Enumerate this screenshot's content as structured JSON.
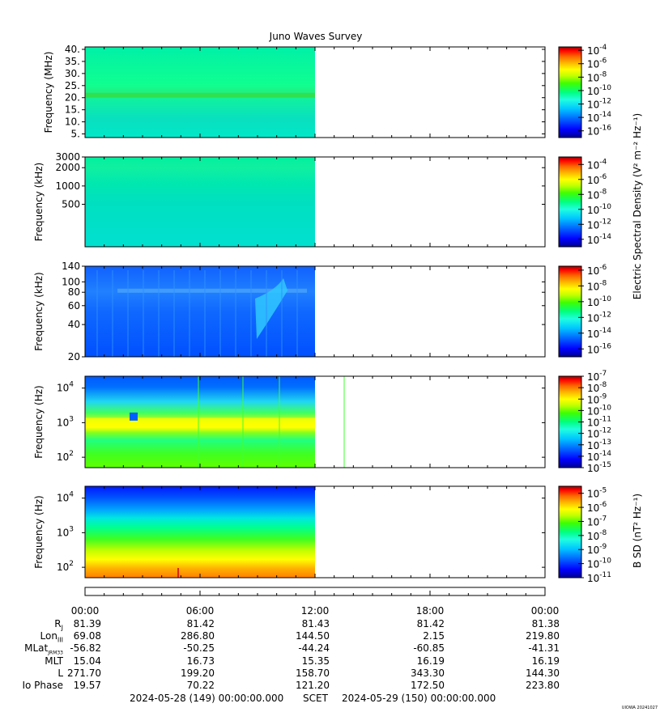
{
  "title": "Juno Waves Survey",
  "colors": {
    "jet": [
      "#00008f",
      "#0000ff",
      "#0060ff",
      "#00c8ff",
      "#20ffe0",
      "#00ff80",
      "#40ff00",
      "#c0ff00",
      "#ffff00",
      "#ffb000",
      "#ff6000",
      "#ff0000",
      "#9f0000"
    ]
  },
  "chart_data": [
    {
      "type": "heatmap",
      "name": "panel-1",
      "ylabel": "Frequency (MHz)",
      "y_ticks": [
        "40.",
        "35.",
        "30.",
        "25.",
        "20.",
        "15.",
        "10.",
        "5."
      ],
      "y_tick_values": [
        40,
        35,
        30,
        25,
        20,
        15,
        10,
        5
      ],
      "ylim": [
        3.5,
        41
      ],
      "yscale": "linear",
      "data_end_fraction": 0.5,
      "colorbar_ticks": [
        "-4",
        "-6",
        "-8",
        "-10",
        "-12",
        "-14",
        "-16"
      ],
      "colorbar_tick_values": [
        -4,
        -6,
        -8,
        -10,
        -12,
        -14,
        -16
      ],
      "colorbar_range": [
        -17,
        -3.5
      ]
    },
    {
      "type": "heatmap",
      "name": "panel-2",
      "ylabel": "Frequency (kHz)",
      "y_ticks": [
        "3000",
        "2000",
        "1000",
        "500"
      ],
      "y_tick_values": [
        3000,
        2000,
        1000,
        500
      ],
      "ylim": [
        100,
        3000
      ],
      "yscale": "log",
      "data_end_fraction": 0.5,
      "colorbar_ticks": [
        "-4",
        "-6",
        "-8",
        "-10",
        "-12",
        "-14"
      ],
      "colorbar_tick_values": [
        -4,
        -6,
        -8,
        -10,
        -12,
        -14
      ],
      "colorbar_range": [
        -15,
        -3
      ],
      "colorbar_label": "Electric Spectral Density (V² m⁻² Hz⁻¹)"
    },
    {
      "type": "heatmap",
      "name": "panel-3",
      "ylabel": "Frequency (kHz)",
      "y_ticks": [
        "140",
        "100",
        "80",
        "60",
        "40",
        "20"
      ],
      "y_tick_values": [
        140,
        100,
        80,
        60,
        40,
        20
      ],
      "ylim": [
        20,
        140
      ],
      "yscale": "log",
      "data_end_fraction": 0.5,
      "colorbar_ticks": [
        "-6",
        "-8",
        "-10",
        "-12",
        "-14",
        "-16"
      ],
      "colorbar_tick_values": [
        -6,
        -8,
        -10,
        -12,
        -14,
        -16
      ],
      "colorbar_range": [
        -17,
        -5.5
      ]
    },
    {
      "type": "heatmap",
      "name": "panel-4",
      "ylabel": "Frequency (Hz)",
      "y_ticks": [
        "4",
        "3",
        "2"
      ],
      "y_tick_values": [
        10000,
        1000,
        100
      ],
      "ylim": [
        50,
        22000
      ],
      "yscale": "log",
      "data_end_fraction": 0.5,
      "colorbar_ticks": [
        "-7",
        "-8",
        "-9",
        "-10",
        "-11",
        "-12",
        "-13",
        "-14",
        "-15"
      ],
      "colorbar_tick_values": [
        -7,
        -8,
        -9,
        -10,
        -11,
        -12,
        -13,
        -14,
        -15
      ],
      "colorbar_range": [
        -15,
        -7
      ]
    },
    {
      "type": "heatmap",
      "name": "panel-5",
      "ylabel": "Frequency (Hz)",
      "y_ticks": [
        "4",
        "3",
        "2"
      ],
      "y_tick_values": [
        10000,
        1000,
        100
      ],
      "ylim": [
        50,
        22000
      ],
      "yscale": "log",
      "data_end_fraction": 0.5,
      "colorbar_ticks": [
        "-5",
        "-6",
        "-7",
        "-8",
        "-9",
        "-10",
        "-11"
      ],
      "colorbar_tick_values": [
        -5,
        -6,
        -7,
        -8,
        -9,
        -10,
        -11
      ],
      "colorbar_range": [
        -11,
        -4.5
      ],
      "colorbar_label": "B SD (nT² Hz⁻¹)"
    }
  ],
  "ephemeris": {
    "times": [
      "00:00",
      "06:00",
      "12:00",
      "18:00",
      "00:00"
    ],
    "rows": [
      {
        "label": "R",
        "sub": "J",
        "values": [
          "81.39",
          "81.42",
          "81.43",
          "81.42",
          "81.38"
        ]
      },
      {
        "label": "Lon",
        "sub": "III",
        "values": [
          "69.08",
          "286.80",
          "144.50",
          "2.15",
          "219.80"
        ]
      },
      {
        "label": "MLat",
        "sub": "JRM33",
        "values": [
          "-56.82",
          "-50.25",
          "-44.24",
          "-60.85",
          "-41.31"
        ]
      },
      {
        "label": "MLT",
        "sub": "",
        "values": [
          "15.04",
          "16.73",
          "15.35",
          "16.19",
          "16.19"
        ]
      },
      {
        "label": "L",
        "sub": "",
        "values": [
          "271.70",
          "199.20",
          "158.70",
          "343.30",
          "144.30"
        ]
      },
      {
        "label": "Io Phase",
        "sub": "",
        "values": [
          "19.57",
          "70.22",
          "121.20",
          "172.50",
          "223.80"
        ]
      }
    ],
    "footer_left": "2024-05-28 (149) 00:00:00.000",
    "footer_mid": "SCET",
    "footer_right": "2024-05-29 (150) 00:00:00.000"
  },
  "credit": "UIOWA 20241027"
}
